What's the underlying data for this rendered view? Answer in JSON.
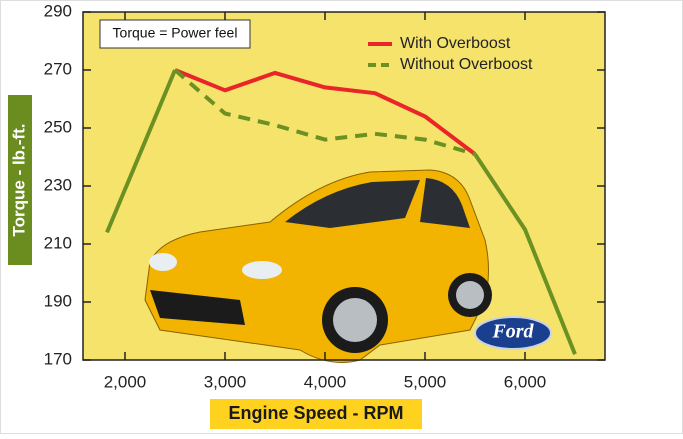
{
  "chart_data": {
    "type": "line",
    "annotation": "Torque = Power feel",
    "xlabel": "Engine Speed - RPM",
    "ylabel": "Torque - lb.-ft.",
    "logo": "Ford",
    "xlim": [
      1580,
      6800
    ],
    "ylim": [
      170,
      290
    ],
    "xticks": [
      {
        "value": 2000,
        "label": "2,000"
      },
      {
        "value": 3000,
        "label": "3,000"
      },
      {
        "value": 4000,
        "label": "4,000"
      },
      {
        "value": 5000,
        "label": "5,000"
      },
      {
        "value": 6000,
        "label": "6,000"
      }
    ],
    "yticks": [
      170,
      190,
      210,
      230,
      250,
      270,
      290
    ],
    "legend": "upper right",
    "series": [
      {
        "name": "With Overboost",
        "color": "#e8262a",
        "dash": false,
        "x": [
          2500,
          3000,
          3500,
          4000,
          4500,
          5000,
          5500
        ],
        "values": [
          270,
          263,
          269,
          264,
          262,
          254,
          241
        ]
      },
      {
        "name": "Without Overboost",
        "color": "#6b9123",
        "dash": true,
        "x": [
          2500,
          3000,
          3500,
          4000,
          4500,
          5000,
          5500
        ],
        "values": [
          270,
          255,
          251,
          246,
          248,
          246,
          241
        ]
      },
      {
        "color": "#6b9123",
        "dash": false,
        "x": [
          1820,
          2500,
          null,
          5500,
          6000,
          6500
        ],
        "values": [
          214,
          270,
          null,
          241,
          215,
          172
        ]
      }
    ]
  }
}
